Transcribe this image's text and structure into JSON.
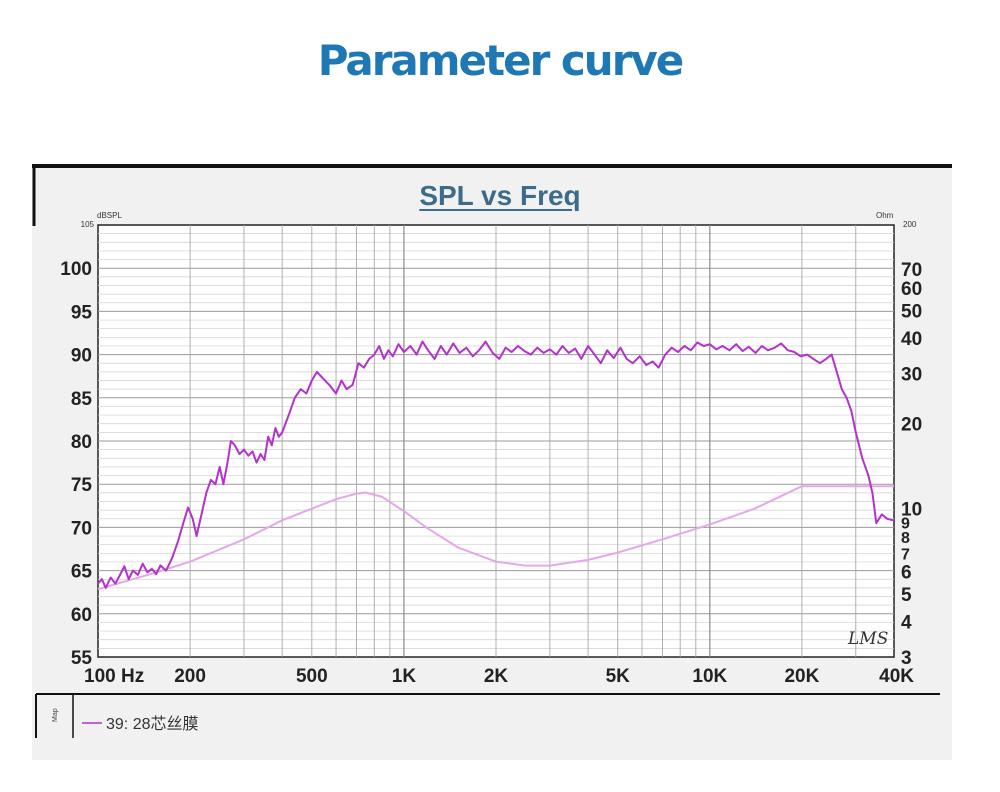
{
  "page": {
    "title": "Parameter curve"
  },
  "colors": {
    "title": "#1d78b4",
    "chart_title": "#3d6b8a",
    "spl": "#b332cc",
    "impedance": "#e6a6ea",
    "grid": "#b8b8b8"
  },
  "chart_data": {
    "type": "line",
    "title": "SPL vs Freq",
    "x_scale": "log",
    "xlim": [
      100,
      40000
    ],
    "x_ticks": [
      {
        "value": 100,
        "label": "100  Hz"
      },
      {
        "value": 200,
        "label": "200"
      },
      {
        "value": 500,
        "label": "500"
      },
      {
        "value": 1000,
        "label": "1K"
      },
      {
        "value": 2000,
        "label": "2K"
      },
      {
        "value": 5000,
        "label": "5K"
      },
      {
        "value": 10000,
        "label": "10K"
      },
      {
        "value": 20000,
        "label": "20K"
      },
      {
        "value": 40000,
        "label": "40K"
      }
    ],
    "y_left": {
      "unit": "dBSPL",
      "range": [
        55,
        105
      ],
      "ticks": [
        "55",
        "60",
        "65",
        "70",
        "75",
        "80",
        "85",
        "90",
        "95",
        "100"
      ],
      "top_label": "105"
    },
    "y_right": {
      "unit": "Ohm",
      "scale": "log",
      "range": [
        3,
        100
      ],
      "ticks": [
        {
          "value": 3,
          "label": "3"
        },
        {
          "value": 4,
          "label": "4"
        },
        {
          "value": 5,
          "label": "5"
        },
        {
          "value": 6,
          "label": "6"
        },
        {
          "value": 7,
          "label": "7"
        },
        {
          "value": 8,
          "label": "8"
        },
        {
          "value": 9,
          "label": "9"
        },
        {
          "value": 10,
          "label": "10"
        },
        {
          "value": 20,
          "label": "20"
        },
        {
          "value": 30,
          "label": "30"
        },
        {
          "value": 40,
          "label": "40"
        },
        {
          "value": 50,
          "label": "50"
        },
        {
          "value": 60,
          "label": "60"
        },
        {
          "value": 70,
          "label": "70"
        }
      ],
      "top_label": "200"
    },
    "grid": true,
    "legend": {
      "placement": "bottom-left",
      "side_label": "Map",
      "entries": [
        "39: 28芯丝膜"
      ]
    },
    "watermark": "LMS",
    "series": [
      {
        "name": "39: 28芯丝膜",
        "axis": "left",
        "points": [
          [
            100,
            63.5
          ],
          [
            103,
            64.0
          ],
          [
            106,
            63.0
          ],
          [
            110,
            64.2
          ],
          [
            114,
            63.5
          ],
          [
            118,
            64.5
          ],
          [
            122,
            65.5
          ],
          [
            126,
            64.0
          ],
          [
            130,
            65.0
          ],
          [
            135,
            64.5
          ],
          [
            140,
            65.8
          ],
          [
            145,
            64.8
          ],
          [
            150,
            65.2
          ],
          [
            155,
            64.6
          ],
          [
            160,
            65.6
          ],
          [
            167,
            65.0
          ],
          [
            175,
            66.5
          ],
          [
            183,
            68.5
          ],
          [
            190,
            70.5
          ],
          [
            197,
            72.3
          ],
          [
            204,
            71.0
          ],
          [
            210,
            69.0
          ],
          [
            218,
            71.5
          ],
          [
            226,
            74.0
          ],
          [
            234,
            75.5
          ],
          [
            242,
            75.0
          ],
          [
            250,
            77.0
          ],
          [
            257,
            75.0
          ],
          [
            265,
            77.5
          ],
          [
            272,
            80.0
          ],
          [
            280,
            79.5
          ],
          [
            290,
            78.5
          ],
          [
            300,
            79.0
          ],
          [
            310,
            78.3
          ],
          [
            320,
            78.8
          ],
          [
            330,
            77.5
          ],
          [
            340,
            78.5
          ],
          [
            350,
            77.8
          ],
          [
            360,
            80.5
          ],
          [
            370,
            79.5
          ],
          [
            380,
            81.5
          ],
          [
            390,
            80.5
          ],
          [
            400,
            81.0
          ],
          [
            420,
            83.0
          ],
          [
            440,
            85.0
          ],
          [
            460,
            86.0
          ],
          [
            480,
            85.5
          ],
          [
            500,
            87.0
          ],
          [
            520,
            88.0
          ],
          [
            545,
            87.2
          ],
          [
            570,
            86.5
          ],
          [
            600,
            85.5
          ],
          [
            625,
            87.0
          ],
          [
            650,
            86.0
          ],
          [
            680,
            86.5
          ],
          [
            710,
            89.0
          ],
          [
            740,
            88.5
          ],
          [
            770,
            89.5
          ],
          [
            800,
            90.0
          ],
          [
            830,
            91.0
          ],
          [
            860,
            89.5
          ],
          [
            890,
            90.5
          ],
          [
            920,
            89.8
          ],
          [
            960,
            91.2
          ],
          [
            1000,
            90.3
          ],
          [
            1050,
            91.0
          ],
          [
            1100,
            90.0
          ],
          [
            1150,
            91.5
          ],
          [
            1200,
            90.5
          ],
          [
            1260,
            89.5
          ],
          [
            1320,
            91.0
          ],
          [
            1380,
            90.0
          ],
          [
            1450,
            91.3
          ],
          [
            1520,
            90.2
          ],
          [
            1600,
            90.8
          ],
          [
            1680,
            89.8
          ],
          [
            1760,
            90.5
          ],
          [
            1850,
            91.5
          ],
          [
            1950,
            90.2
          ],
          [
            2050,
            89.5
          ],
          [
            2150,
            90.8
          ],
          [
            2250,
            90.3
          ],
          [
            2360,
            91.0
          ],
          [
            2480,
            90.4
          ],
          [
            2600,
            90.0
          ],
          [
            2730,
            90.8
          ],
          [
            2860,
            90.2
          ],
          [
            3000,
            90.6
          ],
          [
            3150,
            90.0
          ],
          [
            3300,
            91.0
          ],
          [
            3460,
            90.2
          ],
          [
            3630,
            90.7
          ],
          [
            3800,
            89.5
          ],
          [
            4000,
            91.0
          ],
          [
            4200,
            90.0
          ],
          [
            4400,
            89.0
          ],
          [
            4620,
            90.5
          ],
          [
            4850,
            89.6
          ],
          [
            5100,
            90.8
          ],
          [
            5350,
            89.5
          ],
          [
            5600,
            89.0
          ],
          [
            5900,
            89.8
          ],
          [
            6200,
            88.8
          ],
          [
            6500,
            89.2
          ],
          [
            6800,
            88.5
          ],
          [
            7150,
            90.0
          ],
          [
            7500,
            90.8
          ],
          [
            7870,
            90.3
          ],
          [
            8260,
            91.0
          ],
          [
            8670,
            90.5
          ],
          [
            9100,
            91.4
          ],
          [
            9550,
            91.0
          ],
          [
            10000,
            91.2
          ],
          [
            10500,
            90.6
          ],
          [
            11000,
            91.0
          ],
          [
            11600,
            90.5
          ],
          [
            12200,
            91.2
          ],
          [
            12800,
            90.4
          ],
          [
            13400,
            90.9
          ],
          [
            14100,
            90.2
          ],
          [
            14800,
            91.0
          ],
          [
            15500,
            90.5
          ],
          [
            16300,
            90.8
          ],
          [
            17100,
            91.3
          ],
          [
            18000,
            90.5
          ],
          [
            18900,
            90.3
          ],
          [
            19800,
            89.8
          ],
          [
            20800,
            90.0
          ],
          [
            21800,
            89.5
          ],
          [
            22900,
            89.0
          ],
          [
            24000,
            89.5
          ],
          [
            25000,
            90.0
          ],
          [
            26000,
            88.0
          ],
          [
            27000,
            86.0
          ],
          [
            28000,
            85.0
          ],
          [
            29000,
            83.5
          ],
          [
            30000,
            81.0
          ],
          [
            31500,
            78.0
          ],
          [
            33000,
            76.0
          ],
          [
            34000,
            74.0
          ],
          [
            35000,
            70.5
          ],
          [
            36500,
            71.5
          ],
          [
            38000,
            71.0
          ],
          [
            40000,
            70.8
          ]
        ]
      },
      {
        "name": "",
        "axis": "right",
        "points": [
          [
            100,
            5.2
          ],
          [
            150,
            5.9
          ],
          [
            200,
            6.5
          ],
          [
            300,
            7.8
          ],
          [
            400,
            9.1
          ],
          [
            500,
            10.0
          ],
          [
            600,
            10.8
          ],
          [
            700,
            11.3
          ],
          [
            750,
            11.4
          ],
          [
            850,
            11.0
          ],
          [
            1000,
            9.8
          ],
          [
            1200,
            8.5
          ],
          [
            1500,
            7.3
          ],
          [
            2000,
            6.5
          ],
          [
            2500,
            6.3
          ],
          [
            3000,
            6.3
          ],
          [
            4000,
            6.6
          ],
          [
            5000,
            7.0
          ],
          [
            7000,
            7.8
          ],
          [
            10000,
            8.8
          ],
          [
            14000,
            10.0
          ],
          [
            20000,
            12.0
          ],
          [
            40000,
            12.0
          ]
        ]
      }
    ]
  }
}
